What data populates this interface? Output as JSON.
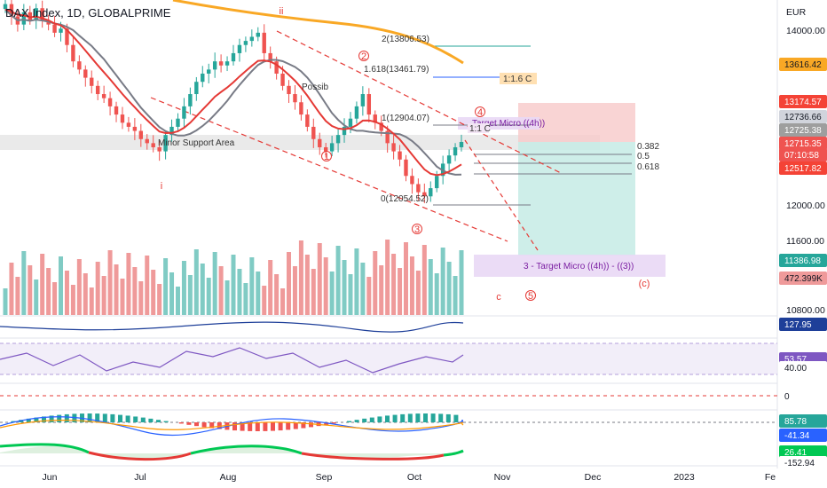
{
  "header": {
    "title": "DAX Index, 1D, GLOBALPRIME"
  },
  "axis": {
    "currency": "EUR",
    "price_ticks": [
      "14000.00",
      "12000.00",
      "11600.00",
      "10800.00"
    ],
    "time_ticks": [
      "Jun",
      "Jul",
      "Aug",
      "Sep",
      "Oct",
      "Nov",
      "Dec",
      "2023",
      "Fe"
    ]
  },
  "price_labels": [
    {
      "text": "13616.42",
      "bg": "#f9a825",
      "fg": "#131722"
    },
    {
      "text": "13174.57",
      "bg": "#f44336",
      "fg": "#ffffff"
    },
    {
      "text": "12736.66",
      "bg": "#d1d4dc",
      "fg": "#131722"
    },
    {
      "text": "12725.38",
      "bg": "#9e9e9e",
      "fg": "#ffffff"
    },
    {
      "text": "12715.35",
      "bg": "#ef5350",
      "fg": "#ffffff"
    },
    {
      "text": "07:10:58",
      "bg": "#ef5350",
      "fg": "#ffffff"
    },
    {
      "text": "12517.82",
      "bg": "#f44336",
      "fg": "#ffffff"
    },
    {
      "text": "11386.98",
      "bg": "#26a69a",
      "fg": "#ffffff"
    },
    {
      "text": "472.399K",
      "bg": "#ef9a9a",
      "fg": "#131722"
    }
  ],
  "indicator_labels": [
    {
      "text": "127.95",
      "bg": "#1e3f99",
      "fg": "#ffffff"
    },
    {
      "text": "53.57",
      "bg": "#7e57c2",
      "fg": "#ffffff"
    },
    {
      "text": "40.00",
      "bg": "#ffffff",
      "fg": "#131722"
    },
    {
      "text": "0",
      "bg": "#ffffff",
      "fg": "#131722"
    },
    {
      "text": "85.78",
      "bg": "#26a69a",
      "fg": "#ffffff"
    },
    {
      "text": "-41.34",
      "bg": "#2962ff",
      "fg": "#ffffff"
    },
    {
      "text": "26.41",
      "bg": "#00c853",
      "fg": "#ffffff"
    },
    {
      "text": "-152.94",
      "bg": "#ffffff",
      "fg": "#131722"
    }
  ],
  "annotations": {
    "fib_ext_2": "2(13806.53)",
    "fib_ext_1618": "1.618(13461.79)",
    "rr_ratio": "1:1.6 C",
    "fib_1": "1(12904.07)",
    "fib_0": "0(12054.52)",
    "fib_0382": "0.382",
    "fib_05": "0.5",
    "fib_0618": "0.618",
    "target_micro": "Target Micro ((4h))",
    "target_box": "3 - Target Micro ((4h)) - ((3))",
    "support_label": "Minor Support Area",
    "possib": "Possib",
    "small_pill": "1:1 C"
  },
  "wave_labels": {
    "w_i": "i",
    "w_ii": "ii",
    "w_1": "1",
    "w_2": "2",
    "w_3": "3",
    "w_4": "4",
    "w_5": "5",
    "w_c": "c",
    "w_cc": "(c)"
  },
  "colors": {
    "up": "#26a69a",
    "down": "#ef5350",
    "ema_red": "#e53935",
    "sma_gray": "#787b86",
    "sma_orange": "#f9a825",
    "stop_zone": "#f8c9c9",
    "target_zone": "#c6ebe5",
    "purple_box": "#e9d8f5"
  },
  "chart_data": {
    "type": "candlestick",
    "symbol": "DAX Index",
    "interval": "1D",
    "currency": "EUR",
    "ylim": [
      10600,
      14450
    ],
    "x_ticks": [
      "Jun",
      "Jul",
      "Aug",
      "Sep",
      "Oct",
      "Nov",
      "Dec",
      "2023",
      "Fe"
    ],
    "y_ticks": [
      14000,
      12000,
      11600,
      10800
    ],
    "last_price": 12715.35,
    "series": [
      {
        "name": "ohlc_close_approx",
        "values": [
          14400,
          14250,
          14150,
          14300,
          14200,
          14350,
          14200,
          14150,
          14050,
          14100,
          13900,
          13700,
          13600,
          13500,
          13400,
          13300,
          13250,
          13150,
          13050,
          12950,
          12900,
          12850,
          12750,
          12700,
          12650,
          12600,
          12800,
          12900,
          13000,
          13150,
          13300,
          13450,
          13550,
          13600,
          13700,
          13650,
          13700,
          13800,
          13900,
          13950,
          14000,
          14050,
          13800,
          13700,
          13550,
          13400,
          13300,
          13200,
          13050,
          12900,
          12750,
          12650,
          12600,
          12700,
          12800,
          12900,
          13000,
          13150,
          13300,
          13050,
          12950,
          12850,
          12700,
          12600,
          12500,
          12300,
          12200,
          12100,
          12050,
          12150,
          12300,
          12450,
          12550,
          12650,
          12715
        ]
      }
    ],
    "overlays": [
      "EMA (red)",
      "SMA (gray)",
      "SMA (orange)"
    ],
    "fibonacci": [
      {
        "level": "2",
        "price": 13806.53
      },
      {
        "level": "1.618",
        "price": 13461.79
      },
      {
        "level": "1",
        "price": 12904.07
      },
      {
        "level": "0",
        "price": 12054.52
      }
    ],
    "target": 11386.98,
    "stop": 13174.57,
    "volume_last": "472.399K"
  }
}
